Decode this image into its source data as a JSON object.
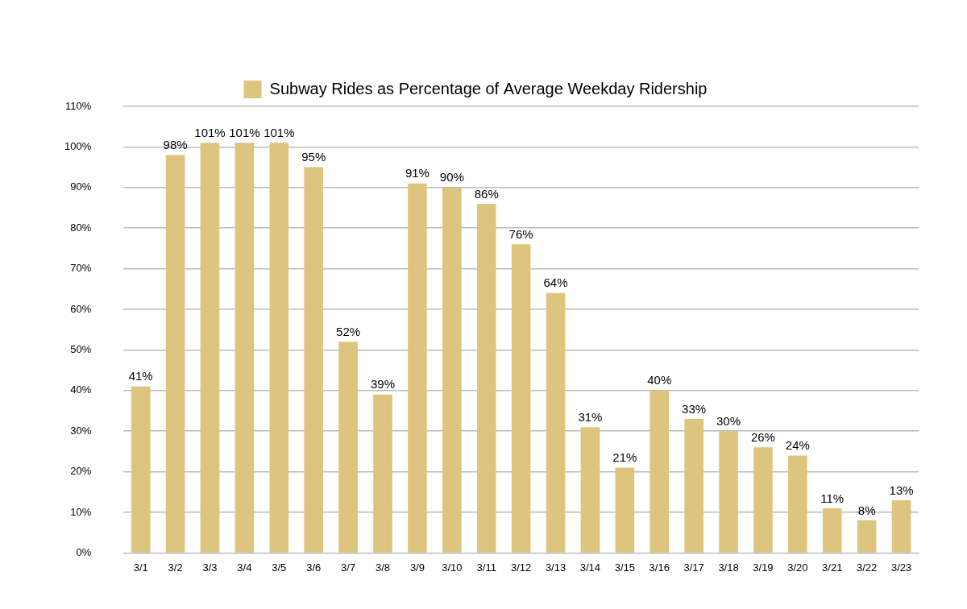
{
  "chart_data": {
    "type": "bar",
    "categories": [
      "3/1",
      "3/2",
      "3/3",
      "3/4",
      "3/5",
      "3/6",
      "3/7",
      "3/8",
      "3/9",
      "3/10",
      "3/11",
      "3/12",
      "3/13",
      "3/14",
      "3/15",
      "3/16",
      "3/17",
      "3/18",
      "3/19",
      "3/20",
      "3/21",
      "3/22",
      "3/23"
    ],
    "series": [
      {
        "name": "Subway Rides as Percentage of Average Weekday Ridership",
        "color": "#ddc47f",
        "values": [
          41,
          98,
          101,
          101,
          101,
          95,
          52,
          39,
          91,
          90,
          86,
          76,
          64,
          31,
          21,
          40,
          33,
          30,
          26,
          24,
          11,
          8,
          13
        ],
        "value_labels": [
          "41%",
          "98%",
          "101%",
          "101%",
          "101%",
          "95%",
          "52%",
          "39%",
          "91%",
          "90%",
          "86%",
          "76%",
          "64%",
          "31%",
          "21%",
          "40%",
          "33%",
          "30%",
          "26%",
          "24%",
          "11%",
          "8%",
          "13%"
        ]
      }
    ],
    "ylim": [
      0,
      110
    ],
    "yticks": [
      {
        "value": 0,
        "label": "0%"
      },
      {
        "value": 10,
        "label": "10%"
      },
      {
        "value": 20,
        "label": "20%"
      },
      {
        "value": 30,
        "label": "30%"
      },
      {
        "value": 40,
        "label": "40%"
      },
      {
        "value": 50,
        "label": "50%"
      },
      {
        "value": 60,
        "label": "60%"
      },
      {
        "value": 70,
        "label": "70%"
      },
      {
        "value": 80,
        "label": "80%"
      },
      {
        "value": 90,
        "label": "90%"
      },
      {
        "value": 100,
        "label": "100%"
      },
      {
        "value": 110,
        "label": "110%"
      }
    ],
    "grid": true,
    "legend": "top",
    "data_labels": true
  }
}
